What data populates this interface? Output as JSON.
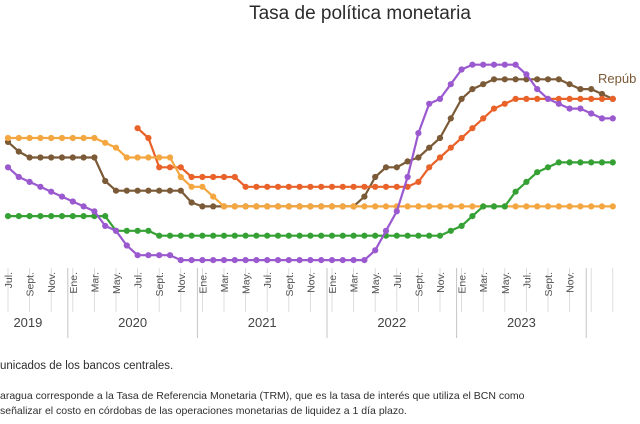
{
  "chart_data": {
    "type": "line",
    "title": "Tasa de política monetaria",
    "x_start": "2019-07",
    "x_end": "2023-12",
    "month_labels": [
      "Jul.",
      "Sept.",
      "Nov.",
      "Ene.",
      "Mar.",
      "May.",
      "Jul.",
      "Sept.",
      "Nov.",
      "Ene.",
      "Mar.",
      "May.",
      "Jul.",
      "Sept.",
      "Nov.",
      "Ene.",
      "Mar.",
      "May.",
      "Jul.",
      "Sept.",
      "Nov.",
      "Ene.",
      "Mar.",
      "May.",
      "Jul.",
      "Sept.",
      "Nov."
    ],
    "year_labels": [
      "2019",
      "2020",
      "2021",
      "2022",
      "2023"
    ],
    "ylim": [
      0,
      11
    ],
    "grid": false,
    "series": [
      {
        "name": "Repúb",
        "color": "#7b5a37",
        "label_visible": true,
        "values": [
          6.3,
          5.8,
          5.5,
          5.5,
          5.5,
          5.5,
          5.5,
          5.5,
          5.5,
          4.3,
          3.8,
          3.8,
          3.8,
          3.8,
          3.8,
          3.8,
          3.8,
          3.2,
          3.0,
          3.0,
          3.0,
          3.0,
          3.0,
          3.0,
          3.0,
          3.0,
          3.0,
          3.0,
          3.0,
          3.0,
          3.0,
          3.0,
          3.0,
          3.5,
          4.5,
          5.0,
          5.0,
          5.3,
          5.5,
          6.0,
          6.5,
          7.5,
          8.5,
          9.0,
          9.25,
          9.5,
          9.5,
          9.5,
          9.5,
          9.5,
          9.5,
          9.5,
          9.25,
          9.0,
          9.0,
          8.75,
          8.5
        ]
      },
      {
        "name": "",
        "color": "#e9622a",
        "label_visible": false,
        "values": [
          null,
          null,
          null,
          null,
          null,
          null,
          null,
          null,
          null,
          null,
          null,
          null,
          7.0,
          6.5,
          5.0,
          5.0,
          5.0,
          4.5,
          4.5,
          4.5,
          4.5,
          4.5,
          4.0,
          4.0,
          4.0,
          4.0,
          4.0,
          4.0,
          4.0,
          4.0,
          4.0,
          4.0,
          4.0,
          4.0,
          4.0,
          4.0,
          4.0,
          4.0,
          4.25,
          5.0,
          5.5,
          6.0,
          6.5,
          7.0,
          7.5,
          8.0,
          8.25,
          8.5,
          8.5,
          8.5,
          8.5,
          8.5,
          8.5,
          8.5,
          8.5,
          8.5,
          8.5
        ]
      },
      {
        "name": "",
        "color": "#f4a640",
        "label_visible": false,
        "values": [
          6.5,
          6.5,
          6.5,
          6.5,
          6.5,
          6.5,
          6.5,
          6.5,
          6.5,
          6.25,
          6.0,
          5.5,
          5.5,
          5.5,
          5.5,
          5.5,
          4.5,
          4.0,
          4.0,
          3.5,
          3.0,
          3.0,
          3.0,
          3.0,
          3.0,
          3.0,
          3.0,
          3.0,
          3.0,
          3.0,
          3.0,
          3.0,
          3.0,
          3.0,
          3.0,
          3.0,
          3.0,
          3.0,
          3.0,
          3.0,
          3.0,
          3.0,
          3.0,
          3.0,
          3.0,
          3.0,
          3.0,
          3.0,
          3.0,
          3.0,
          3.0,
          3.0,
          3.0,
          3.0,
          3.0,
          3.0,
          3.0
        ]
      },
      {
        "name": "",
        "color": "#35a135",
        "label_visible": false,
        "values": [
          2.5,
          2.5,
          2.5,
          2.5,
          2.5,
          2.5,
          2.5,
          2.5,
          2.5,
          2.5,
          1.75,
          1.75,
          1.75,
          1.75,
          1.5,
          1.5,
          1.5,
          1.5,
          1.5,
          1.5,
          1.5,
          1.5,
          1.5,
          1.5,
          1.5,
          1.5,
          1.5,
          1.5,
          1.5,
          1.5,
          1.5,
          1.5,
          1.5,
          1.5,
          1.5,
          1.5,
          1.5,
          1.5,
          1.5,
          1.5,
          1.5,
          1.75,
          2.0,
          2.5,
          3.0,
          3.0,
          3.0,
          3.75,
          4.25,
          4.75,
          5.0,
          5.25,
          5.25,
          5.25,
          5.25,
          5.25,
          5.25
        ]
      },
      {
        "name": "",
        "color": "#9b59d0",
        "label_visible": false,
        "values": [
          5.0,
          4.5,
          4.25,
          4.0,
          3.75,
          3.5,
          3.25,
          3.0,
          2.75,
          2.0,
          1.75,
          1.0,
          0.5,
          0.5,
          0.5,
          0.5,
          0.25,
          0.25,
          0.25,
          0.25,
          0.25,
          0.25,
          0.25,
          0.25,
          0.25,
          0.25,
          0.25,
          0.25,
          0.25,
          0.25,
          0.25,
          0.25,
          0.25,
          0.25,
          0.75,
          1.75,
          2.75,
          4.5,
          6.75,
          8.25,
          8.5,
          9.25,
          10.0,
          10.25,
          10.25,
          10.25,
          10.25,
          10.25,
          9.75,
          9.0,
          8.5,
          8.25,
          8.0,
          8.0,
          7.75,
          7.5,
          7.5
        ]
      }
    ]
  },
  "footnotes": {
    "source": "unicados de los bancos centrales.",
    "line1": "aragua corresponde a la Tasa de Referencia Monetaria (TRM), que es la tasa de interés que utiliza el BCN como",
    "line2": "señalizar el costo en córdobas de las operaciones monetarias de liquidez a 1 día plazo."
  }
}
